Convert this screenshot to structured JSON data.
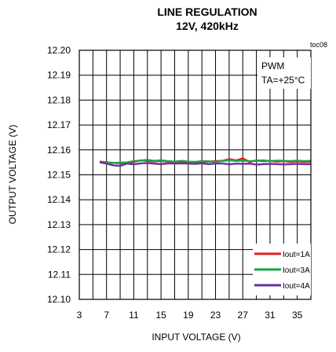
{
  "chart_data": {
    "type": "line",
    "title": "LINE REGULATION",
    "subtitle": "12V, 420kHz",
    "xlabel": "INPUT VOLTAGE (V)",
    "ylabel": "OUTPUT VOLTAGE (V)",
    "corner_tag": "toc08",
    "annotation": [
      "PWM",
      "TA=+25°C"
    ],
    "xlim": [
      3,
      37
    ],
    "ylim": [
      12.1,
      12.2
    ],
    "xticks": [
      3,
      7,
      11,
      15,
      19,
      23,
      27,
      31,
      35
    ],
    "yticks": [
      12.1,
      12.11,
      12.12,
      12.13,
      12.14,
      12.15,
      12.16,
      12.17,
      12.18,
      12.19,
      12.2
    ],
    "x_minor_grid": true,
    "grid": true,
    "legend_position": "bottom-right",
    "series": [
      {
        "name": "Iout=1A",
        "color": "#e31e24",
        "x": [
          6,
          8,
          10,
          11,
          12,
          13,
          14,
          15,
          16,
          17,
          18,
          19,
          20,
          21,
          22,
          23,
          24,
          25,
          26,
          27,
          28,
          29,
          30,
          31,
          32,
          33,
          34,
          35,
          36,
          37
        ],
        "y": [
          12.1553,
          12.1548,
          12.1545,
          12.1552,
          12.1558,
          12.1556,
          12.1554,
          12.1556,
          12.1553,
          12.1552,
          12.155,
          12.1552,
          12.1548,
          12.155,
          12.1553,
          12.1555,
          12.1556,
          12.1563,
          12.1558,
          12.1566,
          12.1552,
          12.1558,
          12.1555,
          12.1556,
          12.1553,
          12.1555,
          12.1552,
          12.1554,
          12.1552,
          12.1553
        ]
      },
      {
        "name": "Iout=3A",
        "color": "#1aa34a",
        "x": [
          6,
          8,
          10,
          11,
          12,
          13,
          14,
          15,
          16,
          17,
          18,
          19,
          20,
          21,
          22,
          23,
          24,
          25,
          26,
          27,
          28,
          29,
          30,
          31,
          32,
          33,
          34,
          35,
          36,
          37
        ],
        "y": [
          12.155,
          12.1548,
          12.155,
          12.1555,
          12.1557,
          12.156,
          12.1556,
          12.1558,
          12.1555,
          12.1553,
          12.1556,
          12.1553,
          12.1552,
          12.1555,
          12.1554,
          12.1552,
          12.1556,
          12.1558,
          12.1556,
          12.1557,
          12.1555,
          12.1556,
          12.1558,
          12.1555,
          12.1557,
          12.1556,
          12.1555,
          12.1557,
          12.1555,
          12.1556
        ]
      },
      {
        "name": "Iout=4A",
        "color": "#6633a3",
        "x": [
          6,
          7,
          8,
          9,
          10,
          11,
          12,
          13,
          14,
          15,
          16,
          17,
          18,
          19,
          20,
          21,
          22,
          23,
          24,
          25,
          26,
          27,
          28,
          29,
          30,
          31,
          32,
          33,
          34,
          35,
          36,
          37
        ],
        "y": [
          12.155,
          12.1545,
          12.1538,
          12.1536,
          12.1545,
          12.1542,
          12.1546,
          12.1547,
          12.1545,
          12.1543,
          12.1546,
          12.1545,
          12.1546,
          12.1545,
          12.1544,
          12.1546,
          12.1543,
          12.1545,
          12.1546,
          12.1542,
          12.1545,
          12.1544,
          12.1545,
          12.1541,
          12.1543,
          12.1544,
          12.1543,
          12.1542,
          12.1543,
          12.1544,
          12.1543,
          12.1543
        ]
      }
    ]
  }
}
